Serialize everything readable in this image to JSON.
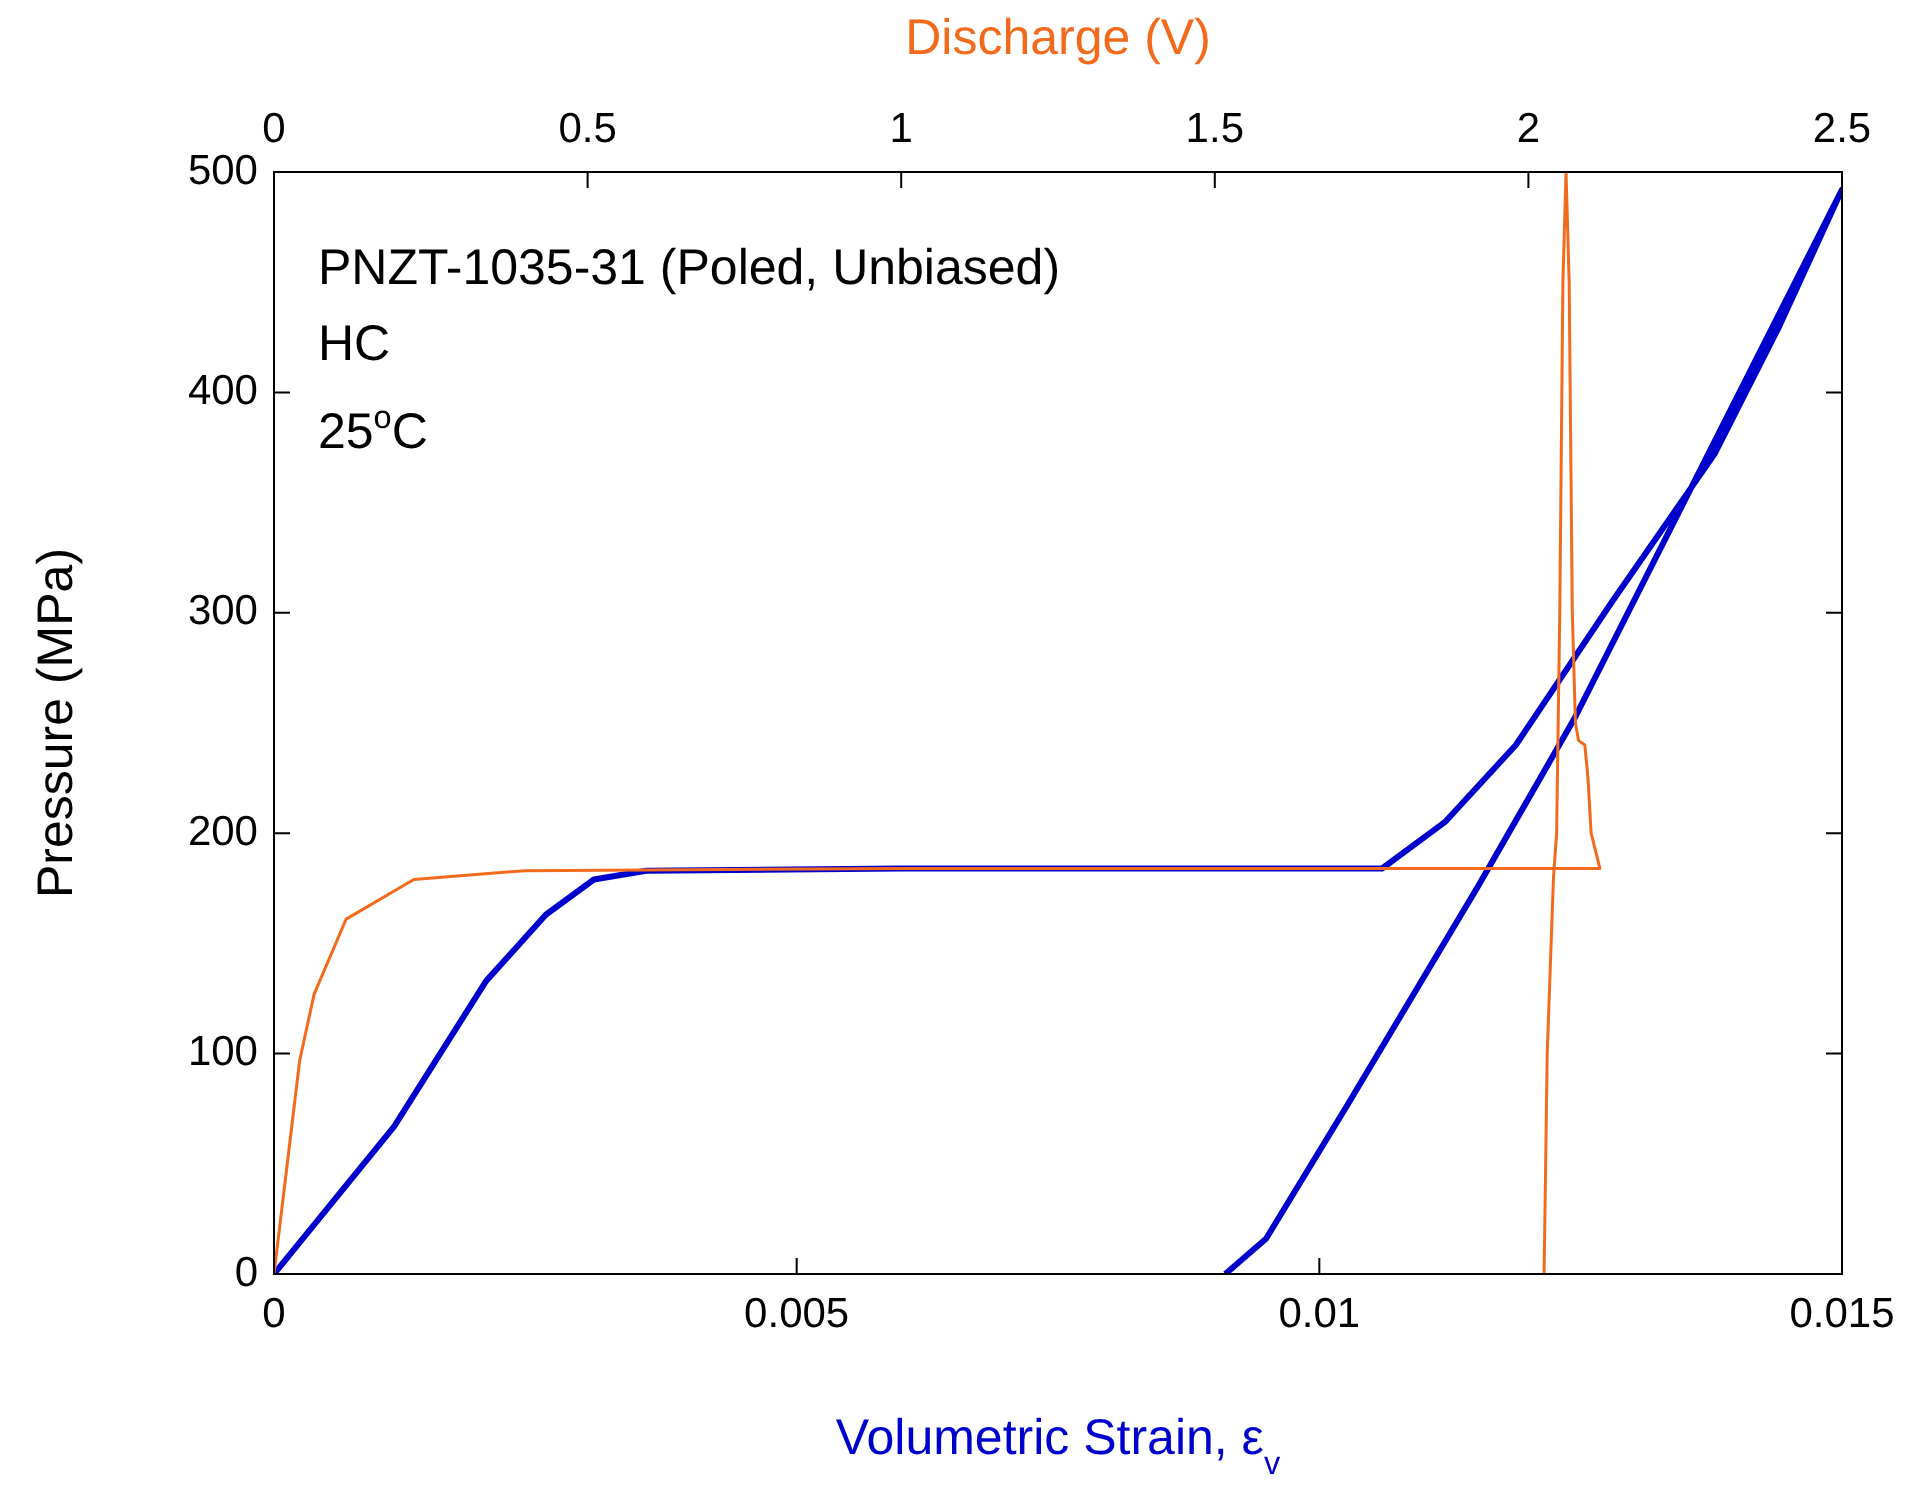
{
  "chart_data": {
    "type": "line",
    "xlabel": "Volumetric Strain, ε$_{v}$",
    "x2label": "Discharge (V)",
    "ylabel": "Pressure (MPa)",
    "annotations": [
      "PNZT-1035-31 (Poled, Unbiased)",
      "HC",
      "25$^{o}$C"
    ],
    "xlim": [
      0,
      0.015
    ],
    "xticks": [
      0,
      0.005,
      0.01,
      0.015
    ],
    "x2lim": [
      0,
      2.5
    ],
    "x2ticks": [
      0,
      0.5,
      1,
      1.5,
      2,
      2.5
    ],
    "ylim": [
      0,
      500
    ],
    "yticks": [
      0,
      100,
      200,
      300,
      400,
      500
    ],
    "grid": false,
    "legend": false,
    "marker": "none",
    "line_style": "solid",
    "series": [
      {
        "color": "#0000cc",
        "x": [
          0,
          0.00115,
          0.00203,
          0.0026,
          0.00306,
          0.00356,
          0.006,
          0.009,
          0.0106,
          0.0112,
          0.01188,
          0.0128,
          0.01378,
          0.0144,
          0.015,
          0.01244,
          0.01152,
          0.01026,
          0.00949,
          0.0091
        ],
        "values": [
          0,
          67,
          133,
          163,
          179,
          183,
          184,
          184,
          184,
          205,
          240,
          305,
          372,
          430,
          492,
          252,
          176,
          76,
          16,
          0
        ]
      },
      {
        "color": "#f26b1d",
        "axis": "x2",
        "x": [
          0,
          0.041,
          0.064,
          0.115,
          0.223,
          0.4,
          1,
          1.5,
          2.114,
          2.1,
          2.095,
          2.09,
          2.08,
          2.075,
          2.07,
          2.065,
          2.06,
          2.055,
          2.05,
          2.045,
          2.04,
          2.03,
          2.025
        ],
        "values": [
          0,
          97,
          127,
          161,
          179,
          183,
          184,
          184,
          184,
          200,
          225,
          240,
          242,
          250,
          300,
          450,
          500,
          450,
          300,
          200,
          180,
          100,
          0
        ]
      }
    ]
  }
}
